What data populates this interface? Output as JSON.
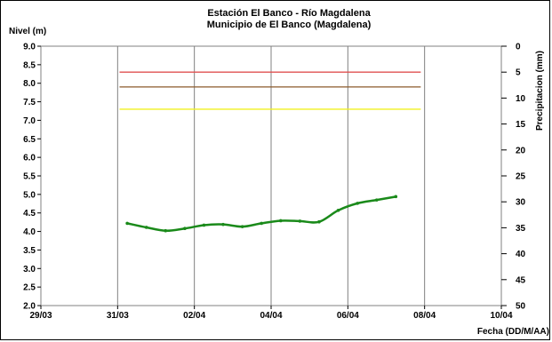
{
  "chart_data": {
    "type": "line",
    "title": "Estación El Banco - Río Magdalena",
    "subtitle": "Municipio de El Banco (Magdalena)",
    "ylabel": "Nivel (m)",
    "y2label": "Precipitacion (mm)",
    "xlabel": "Fecha (DD/M/AA)",
    "x_tick_labels": [
      "29/03",
      "31/03",
      "02/04",
      "04/04",
      "06/04",
      "08/04",
      "10/04"
    ],
    "x_range_days": [
      0,
      12
    ],
    "ylim": [
      2.0,
      9.0
    ],
    "y_ticks": [
      "2.0",
      "2.5",
      "3.0",
      "3.5",
      "4.0",
      "4.5",
      "5.0",
      "5.5",
      "6.0",
      "6.5",
      "7.0",
      "7.5",
      "8.0",
      "8.5",
      "9.0"
    ],
    "y2lim": [
      0,
      50
    ],
    "y2_inverted": true,
    "y2_ticks": [
      "0",
      "5",
      "10",
      "15",
      "20",
      "25",
      "30",
      "35",
      "40",
      "45",
      "50"
    ],
    "grid_vertical": true,
    "grid_horizontal": false,
    "reference_lines": [
      {
        "y": 8.3,
        "color": "#e05050",
        "x_start": 2.05,
        "x_end": 9.9
      },
      {
        "y": 7.9,
        "color": "#8b5a2b",
        "x_start": 2.05,
        "x_end": 9.9
      },
      {
        "y": 7.3,
        "color": "#f0f020",
        "x_start": 2.05,
        "x_end": 9.9
      }
    ],
    "series": [
      {
        "color": "#1a8a1a",
        "x": [
          2.25,
          2.75,
          3.25,
          3.75,
          4.25,
          4.75,
          5.25,
          5.75,
          6.25,
          6.75,
          7.25,
          7.75,
          8.25,
          8.75,
          9.25
        ],
        "y": [
          4.22,
          4.11,
          4.02,
          4.08,
          4.17,
          4.19,
          4.13,
          4.22,
          4.29,
          4.28,
          4.26,
          4.57,
          4.76,
          4.85,
          4.94
        ]
      }
    ]
  }
}
